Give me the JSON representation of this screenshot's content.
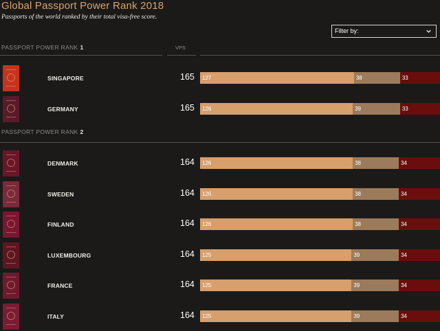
{
  "header": {
    "title": "Global Passport Power Rank 2018",
    "subtitle": "Passports of the world ranked by their total visa-free score."
  },
  "filter": {
    "label": "Filter by:"
  },
  "columns": {
    "vps": "VPS"
  },
  "colors": {
    "segment1": "#d69f6c",
    "segment2": "#9b7b5c",
    "segment3": "#6b0d0d",
    "accent": "#d6a26f"
  },
  "groups": [
    {
      "rank_label": "PASSPORT POWER RANK",
      "rank": "1",
      "rows": [
        {
          "country": "SINGAPORE",
          "score": "165",
          "seg1": "127",
          "seg2": "38",
          "seg3": "33",
          "cover": "#c8321f"
        },
        {
          "country": "GERMANY",
          "score": "165",
          "seg1": "126",
          "seg2": "39",
          "seg3": "33",
          "cover": "#5a1a2a"
        }
      ]
    },
    {
      "rank_label": "PASSPORT POWER RANK",
      "rank": "2",
      "rows": [
        {
          "country": "DENMARK",
          "score": "164",
          "seg1": "126",
          "seg2": "38",
          "seg3": "34",
          "cover": "#6a1628"
        },
        {
          "country": "SWEDEN",
          "score": "164",
          "seg1": "126",
          "seg2": "38",
          "seg3": "34",
          "cover": "#7a2a3a"
        },
        {
          "country": "FINLAND",
          "score": "164",
          "seg1": "126",
          "seg2": "38",
          "seg3": "34",
          "cover": "#7a1532"
        },
        {
          "country": "LUXEMBOURG",
          "score": "164",
          "seg1": "125",
          "seg2": "39",
          "seg3": "34",
          "cover": "#5e1620"
        },
        {
          "country": "FRANCE",
          "score": "164",
          "seg1": "125",
          "seg2": "39",
          "seg3": "34",
          "cover": "#6e1a2e"
        },
        {
          "country": "ITALY",
          "score": "164",
          "seg1": "125",
          "seg2": "39",
          "seg3": "34",
          "cover": "#7a1c34"
        }
      ]
    }
  ]
}
